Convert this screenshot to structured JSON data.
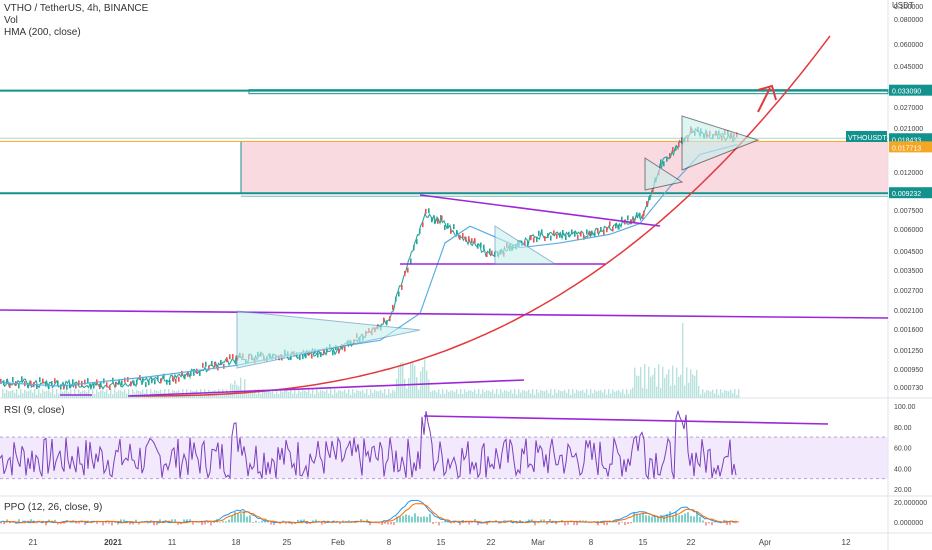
{
  "legend": {
    "title": "VTHO / TetherUS, 4h, BINANCE",
    "vol": "Vol",
    "hma": "HMA (200, close)"
  },
  "rsi": {
    "label": "RSI (9, close)",
    "ticks": [
      "100.00",
      "80.00",
      "60.00",
      "40.00",
      "20.00"
    ]
  },
  "ppo": {
    "label": "PPO (12, 26, close, 9)",
    "ticks": [
      "20.000000",
      "0.000000"
    ]
  },
  "axis": {
    "currency": "USDT",
    "price_ticks": [
      "0.100000",
      "0.080000",
      "0.060000",
      "0.045000",
      "0.027000",
      "0.021000",
      "0.012000",
      "0.007500",
      "0.006000",
      "0.004500",
      "0.003500",
      "0.002700",
      "0.002100",
      "0.001600",
      "0.001250",
      "0.000950",
      "0.000730"
    ],
    "x_ticks": [
      "21",
      "2021",
      "11",
      "18",
      "25",
      "Feb",
      "8",
      "15",
      "22",
      "Mar",
      "8",
      "15",
      "22",
      "Apr",
      "12"
    ]
  },
  "price_labels": [
    {
      "text": "0.033090",
      "color": "#12928d"
    },
    {
      "text": "VTHOUSDT",
      "color": "#12928d"
    },
    {
      "text": "0.018433",
      "color": "#12928d"
    },
    {
      "text": "0.017713",
      "color": "#f5a623"
    },
    {
      "text": "0.009232",
      "color": "#12928d"
    }
  ],
  "colors": {
    "accent_teal": "#12928d",
    "purple": "#9c27d9",
    "red_curve": "#e5383b",
    "hma_blue": "#5aaee0",
    "pink_zone": "#f9d3dc",
    "up": "#26a69a",
    "down": "#ef5350"
  },
  "chart_data": [
    {
      "type": "line",
      "title": "VTHO / TetherUS, 4h, BINANCE",
      "x_ticks": [
        "21",
        "2021",
        "11",
        "18",
        "25",
        "Feb",
        "8",
        "15",
        "22",
        "Mar",
        "8",
        "15",
        "22",
        "Apr",
        "12"
      ],
      "y_scale": "log",
      "ylim": [
        0.0006,
        0.11
      ],
      "series": [
        {
          "name": "VTHOUSDT",
          "x": [
            "Dec 21",
            "Jan 1",
            "Jan 11",
            "Jan 18",
            "Jan 25",
            "Feb 1",
            "Feb 8",
            "Feb 11",
            "Feb 15",
            "Feb 22",
            "Mar 1",
            "Mar 8",
            "Mar 15",
            "Mar 18",
            "Mar 22",
            "Mar 26"
          ],
          "values": [
            0.00078,
            0.00075,
            0.00082,
            0.0011,
            0.00115,
            0.00125,
            0.0018,
            0.0072,
            0.0065,
            0.0042,
            0.0055,
            0.0056,
            0.007,
            0.013,
            0.02,
            0.01843
          ]
        }
      ],
      "levels": [
        0.03309,
        0.018433,
        0.017713,
        0.009232
      ]
    },
    {
      "type": "line",
      "title": "RSI (9, close)",
      "ylim": [
        20,
        100
      ],
      "series": [
        {
          "name": "RSI",
          "x": [
            "Dec 21",
            "Jan 1",
            "Jan 11",
            "Jan 18",
            "Jan 25",
            "Feb 1",
            "Feb 8",
            "Feb 11",
            "Feb 15",
            "Feb 22",
            "Mar 1",
            "Mar 8",
            "Mar 15",
            "Mar 18",
            "Mar 22",
            "Mar 26"
          ],
          "values": [
            45,
            50,
            48,
            80,
            55,
            60,
            62,
            92,
            50,
            40,
            55,
            52,
            78,
            70,
            88,
            50
          ]
        }
      ]
    },
    {
      "type": "line",
      "title": "PPO (12, 26, close, 9)",
      "ylim": [
        -10,
        25
      ],
      "series": [
        {
          "name": "PPO",
          "x": [
            "Dec 21",
            "Jan 1",
            "Jan 11",
            "Jan 18",
            "Jan 25",
            "Feb 1",
            "Feb 8",
            "Feb 11",
            "Feb 15",
            "Feb 22",
            "Mar 1",
            "Mar 8",
            "Mar 15",
            "Mar 18",
            "Mar 22",
            "Mar 26"
          ],
          "values": [
            0,
            -1,
            0,
            12,
            4,
            3,
            8,
            25,
            5,
            -5,
            2,
            1,
            10,
            12,
            15,
            1
          ]
        }
      ]
    }
  ]
}
